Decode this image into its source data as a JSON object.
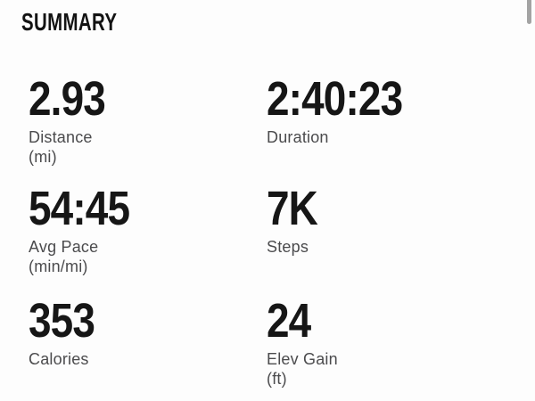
{
  "header": {
    "title": "SUMMARY"
  },
  "metrics": [
    {
      "value": "2.93",
      "label": "Distance",
      "unit": "(mi)"
    },
    {
      "value": "2:40:23",
      "label": "Duration",
      "unit": ""
    },
    {
      "value": "54:45",
      "label": "Avg Pace",
      "unit": "(min/mi)"
    },
    {
      "value": "7K",
      "label": "Steps",
      "unit": ""
    },
    {
      "value": "353",
      "label": "Calories",
      "unit": ""
    },
    {
      "value": "24",
      "label": "Elev Gain",
      "unit": "(ft)"
    }
  ],
  "colors": {
    "background": "#fdfdfd",
    "header_text": "#131313",
    "value_text": "#161616",
    "label_text": "#4b4b4d",
    "scrollbar_thumb": "#a3a3a3"
  }
}
